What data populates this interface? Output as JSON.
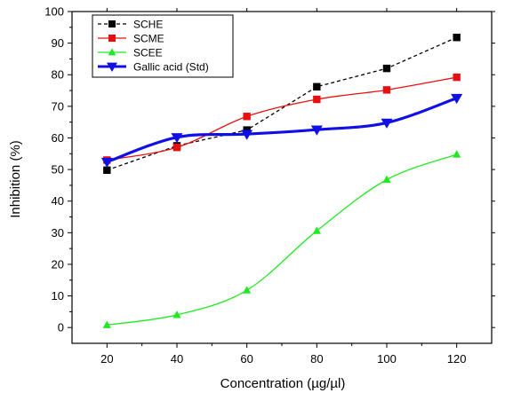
{
  "chart_data": {
    "type": "line",
    "xlabel": "Concentration (µg/µl)",
    "ylabel": "Inhibition (%)",
    "x": [
      20,
      40,
      60,
      80,
      100,
      120
    ],
    "xlim": [
      10,
      130
    ],
    "ylim": [
      -5,
      100
    ],
    "xticks": [
      20,
      40,
      60,
      80,
      100,
      120
    ],
    "yticks": [
      0,
      10,
      20,
      30,
      40,
      50,
      60,
      70,
      80,
      90,
      100
    ],
    "grid": false,
    "legend_position": "top-left",
    "series": [
      {
        "name": "SCHE",
        "values": [
          49.8,
          57.5,
          62.5,
          76.2,
          82.0,
          91.8
        ],
        "color": "#000000",
        "marker": "square",
        "line": "dashed"
      },
      {
        "name": "SCME",
        "values": [
          53.0,
          57.0,
          66.8,
          72.2,
          75.2,
          79.2
        ],
        "color": "#e8100f",
        "marker": "square",
        "line": "smooth"
      },
      {
        "name": "SCEE",
        "values": [
          0.8,
          4.0,
          11.8,
          30.6,
          46.8,
          54.8
        ],
        "color": "#22e822",
        "marker": "triangle-up",
        "line": "smooth"
      },
      {
        "name": "Gallic acid (Std)",
        "values": [
          52.4,
          60.2,
          61.2,
          62.6,
          64.8,
          72.6
        ],
        "color": "#1010e6",
        "marker": "triangle-down",
        "line": "smooth-bold"
      }
    ]
  }
}
